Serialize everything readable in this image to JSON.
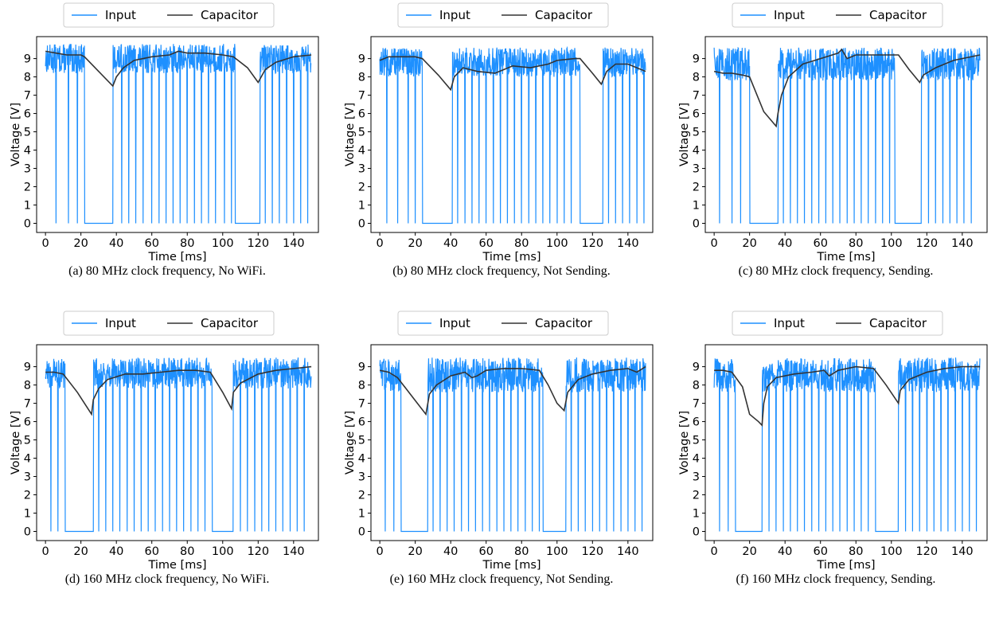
{
  "colors": {
    "input": "#1e90ff",
    "capacitor": "#333333"
  },
  "chart_data": [
    {
      "type": "line",
      "caption": "(a) 80 MHz clock frequency, No WiFi.",
      "xlabel": "Time [ms]",
      "ylabel": "Voltage [V]",
      "xlim": [
        -5,
        154
      ],
      "ylim": [
        -0.5,
        10.2
      ],
      "xticks": [
        0,
        20,
        40,
        60,
        80,
        100,
        120,
        140
      ],
      "yticks": [
        0,
        1,
        2,
        3,
        4,
        5,
        6,
        7,
        8,
        9
      ],
      "grid": false,
      "legend": {
        "placement": "top-center",
        "entries": [
          "Input",
          "Capacitor"
        ]
      },
      "input": {
        "hi": [
          8.2,
          9.8
        ],
        "offs": [
          [
            22,
            38
          ],
          [
            107,
            121
          ]
        ],
        "drops": [
          6,
          13,
          18,
          43,
          47,
          51,
          55,
          60,
          64,
          68,
          72,
          76,
          80,
          84,
          88,
          92,
          96,
          101,
          105,
          124,
          128,
          132,
          136,
          140,
          144,
          148
        ]
      },
      "series": [
        {
          "name": "Input",
          "color": "#1e90ff"
        },
        {
          "name": "Capacitor",
          "color": "#333333",
          "x": [
            0,
            6,
            12,
            20,
            22,
            30,
            38,
            40,
            44,
            50,
            60,
            70,
            75,
            80,
            90,
            100,
            106,
            114,
            120,
            124,
            130,
            140,
            150
          ],
          "y": [
            9.4,
            9.3,
            9.2,
            9.2,
            9.1,
            8.3,
            7.5,
            8.0,
            8.5,
            8.9,
            9.1,
            9.2,
            9.4,
            9.3,
            9.3,
            9.2,
            9.1,
            8.5,
            7.7,
            8.4,
            8.8,
            9.1,
            9.2
          ]
        }
      ]
    },
    {
      "type": "line",
      "caption": "(b) 80 MHz clock frequency, Not Sending.",
      "xlabel": "Time [ms]",
      "ylabel": "Voltage [V]",
      "xlim": [
        -5,
        154
      ],
      "ylim": [
        -0.5,
        10.2
      ],
      "xticks": [
        0,
        20,
        40,
        60,
        80,
        100,
        120,
        140
      ],
      "yticks": [
        0,
        1,
        2,
        3,
        4,
        5,
        6,
        7,
        8,
        9
      ],
      "grid": false,
      "legend": {
        "placement": "top-center",
        "entries": [
          "Input",
          "Capacitor"
        ]
      },
      "input": {
        "hi": [
          8.0,
          9.6
        ],
        "offs": [
          [
            24,
            41
          ],
          [
            113,
            126
          ]
        ],
        "drops": [
          4,
          10,
          16,
          20,
          44,
          48,
          52,
          56,
          60,
          64,
          68,
          72,
          76,
          80,
          84,
          88,
          92,
          96,
          100,
          104,
          108,
          129,
          133,
          137,
          141,
          145,
          149
        ]
      },
      "series": [
        {
          "name": "Input",
          "color": "#1e90ff"
        },
        {
          "name": "Capacitor",
          "color": "#333333",
          "x": [
            0,
            5,
            10,
            20,
            24,
            33,
            40,
            42,
            47,
            55,
            65,
            75,
            85,
            95,
            100,
            110,
            113,
            120,
            125,
            128,
            133,
            140,
            150
          ],
          "y": [
            8.9,
            9.1,
            9.1,
            9.1,
            9.0,
            8.1,
            7.3,
            8.0,
            8.5,
            8.3,
            8.2,
            8.6,
            8.5,
            8.7,
            8.9,
            9.0,
            9.0,
            8.2,
            7.6,
            8.3,
            8.7,
            8.7,
            8.3
          ]
        }
      ]
    },
    {
      "type": "line",
      "caption": "(c) 80 MHz clock frequency, Sending.",
      "xlabel": "Time [ms]",
      "ylabel": "Voltage [V]",
      "xlim": [
        -5,
        154
      ],
      "ylim": [
        -0.5,
        10.2
      ],
      "xticks": [
        0,
        20,
        40,
        60,
        80,
        100,
        120,
        140
      ],
      "yticks": [
        0,
        1,
        2,
        3,
        4,
        5,
        6,
        7,
        8,
        9
      ],
      "grid": false,
      "legend": {
        "placement": "top-center",
        "entries": [
          "Input",
          "Capacitor"
        ]
      },
      "input": {
        "hi": [
          7.8,
          9.6
        ],
        "offs": [
          [
            20,
            36
          ],
          [
            102,
            117
          ]
        ],
        "drops": [
          3,
          10,
          15,
          39,
          43,
          47,
          51,
          55,
          59,
          63,
          67,
          71,
          75,
          79,
          83,
          87,
          91,
          95,
          99,
          121,
          125,
          129,
          133,
          137,
          141,
          145
        ]
      },
      "series": [
        {
          "name": "Input",
          "color": "#1e90ff"
        },
        {
          "name": "Capacitor",
          "color": "#333333",
          "x": [
            0,
            5,
            10,
            16,
            20,
            28,
            35,
            36,
            38,
            42,
            50,
            60,
            70,
            72,
            75,
            80,
            90,
            100,
            104,
            110,
            116,
            118,
            125,
            135,
            150
          ],
          "y": [
            8.3,
            8.2,
            8.2,
            8.1,
            8.0,
            6.1,
            5.3,
            6.0,
            7.0,
            8.0,
            8.7,
            9.0,
            9.3,
            9.5,
            9.0,
            9.2,
            9.2,
            9.2,
            9.2,
            8.4,
            7.7,
            8.1,
            8.5,
            8.9,
            9.2
          ]
        }
      ]
    },
    {
      "type": "line",
      "caption": "(d) 160 MHz clock frequency, No WiFi.",
      "xlabel": "Time [ms]",
      "ylabel": "Voltage [V]",
      "xlim": [
        -5,
        154
      ],
      "ylim": [
        -0.5,
        10.2
      ],
      "xticks": [
        0,
        20,
        40,
        60,
        80,
        100,
        120,
        140
      ],
      "yticks": [
        0,
        1,
        2,
        3,
        4,
        5,
        6,
        7,
        8,
        9
      ],
      "grid": false,
      "legend": {
        "placement": "top-center",
        "entries": [
          "Input",
          "Capacitor"
        ]
      },
      "input": {
        "hi": [
          7.8,
          9.5
        ],
        "offs": [
          [
            11,
            27
          ],
          [
            94,
            106
          ]
        ],
        "drops": [
          3,
          7,
          30,
          34,
          38,
          42,
          46,
          50,
          54,
          58,
          62,
          66,
          70,
          74,
          78,
          82,
          86,
          90,
          110,
          114,
          118,
          122,
          126,
          130,
          134,
          138,
          142,
          146
        ]
      },
      "series": [
        {
          "name": "Input",
          "color": "#1e90ff"
        },
        {
          "name": "Capacitor",
          "color": "#333333",
          "x": [
            0,
            5,
            10,
            18,
            26,
            27,
            30,
            35,
            45,
            55,
            65,
            75,
            85,
            93,
            100,
            105,
            106,
            110,
            120,
            130,
            140,
            150
          ],
          "y": [
            8.7,
            8.7,
            8.6,
            7.6,
            6.4,
            7.2,
            7.8,
            8.3,
            8.6,
            8.6,
            8.7,
            8.8,
            8.8,
            8.7,
            7.6,
            6.7,
            7.6,
            8.1,
            8.6,
            8.8,
            8.9,
            9.0
          ]
        }
      ]
    },
    {
      "type": "line",
      "caption": "(e) 160 MHz clock frequency, Not Sending.",
      "xlabel": "Time [ms]",
      "ylabel": "Voltage [V]",
      "xlim": [
        -5,
        154
      ],
      "ylim": [
        -0.5,
        10.2
      ],
      "xticks": [
        0,
        20,
        40,
        60,
        80,
        100,
        120,
        140
      ],
      "yticks": [
        0,
        1,
        2,
        3,
        4,
        5,
        6,
        7,
        8,
        9
      ],
      "grid": false,
      "legend": {
        "placement": "top-center",
        "entries": [
          "Input",
          "Capacitor"
        ]
      },
      "input": {
        "hi": [
          7.6,
          9.5
        ],
        "offs": [
          [
            12,
            27
          ],
          [
            92,
            105
          ]
        ],
        "drops": [
          3,
          8,
          30,
          34,
          38,
          42,
          46,
          50,
          54,
          58,
          62,
          66,
          70,
          74,
          78,
          82,
          86,
          90,
          108,
          112,
          116,
          120,
          124,
          128,
          132,
          136,
          140,
          144,
          148
        ]
      },
      "series": [
        {
          "name": "Input",
          "color": "#1e90ff"
        },
        {
          "name": "Capacitor",
          "color": "#333333",
          "x": [
            0,
            5,
            10,
            18,
            26,
            28,
            32,
            40,
            48,
            52,
            55,
            60,
            70,
            80,
            90,
            95,
            100,
            104,
            106,
            112,
            120,
            130,
            140,
            145,
            150
          ],
          "y": [
            8.8,
            8.7,
            8.4,
            7.4,
            6.4,
            7.5,
            8.0,
            8.5,
            8.7,
            8.4,
            8.5,
            8.8,
            8.9,
            8.9,
            8.8,
            8.0,
            7.0,
            6.6,
            7.6,
            8.3,
            8.6,
            8.8,
            8.9,
            8.7,
            9.0
          ]
        }
      ]
    },
    {
      "type": "line",
      "caption": "(f) 160 MHz clock frequency, Sending.",
      "xlabel": "Time [ms]",
      "ylabel": "Voltage [V]",
      "xlim": [
        -5,
        154
      ],
      "ylim": [
        -0.5,
        10.2
      ],
      "xticks": [
        0,
        20,
        40,
        60,
        80,
        100,
        120,
        140
      ],
      "yticks": [
        0,
        1,
        2,
        3,
        4,
        5,
        6,
        7,
        8,
        9
      ],
      "grid": false,
      "legend": {
        "placement": "top-center",
        "entries": [
          "Input",
          "Capacitor"
        ]
      },
      "input": {
        "hi": [
          7.6,
          9.5
        ],
        "offs": [
          [
            12,
            27
          ],
          [
            91,
            104
          ]
        ],
        "drops": [
          3,
          8,
          31,
          35,
          39,
          43,
          47,
          51,
          55,
          59,
          63,
          67,
          71,
          75,
          79,
          83,
          87,
          108,
          112,
          116,
          120,
          124,
          128,
          132,
          136,
          140,
          144,
          148
        ]
      },
      "series": [
        {
          "name": "Input",
          "color": "#1e90ff"
        },
        {
          "name": "Capacitor",
          "color": "#333333",
          "x": [
            0,
            5,
            10,
            16,
            20,
            25,
            27,
            28,
            30,
            35,
            45,
            55,
            62,
            65,
            70,
            80,
            90,
            97,
            104,
            105,
            110,
            120,
            130,
            140,
            150
          ],
          "y": [
            8.8,
            8.8,
            8.7,
            7.9,
            6.4,
            6.0,
            5.8,
            7.0,
            7.9,
            8.4,
            8.6,
            8.7,
            8.8,
            8.5,
            8.8,
            9.0,
            8.9,
            8.0,
            7.0,
            7.7,
            8.3,
            8.7,
            8.9,
            9.0,
            9.0
          ]
        }
      ]
    }
  ]
}
